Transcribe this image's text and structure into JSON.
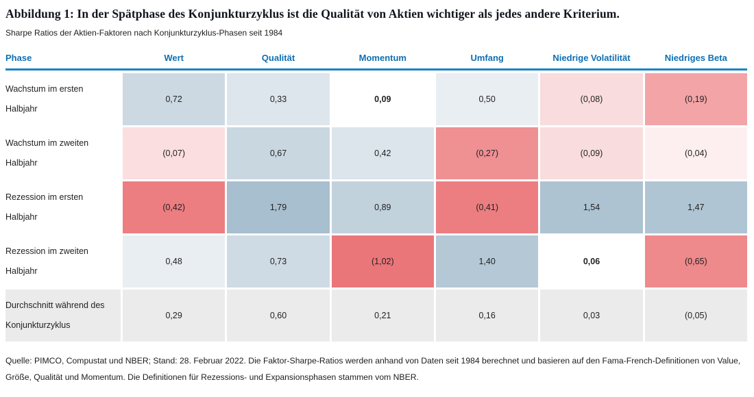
{
  "title": "Abbildung 1: In der Spätphase des Konjunkturzyklus ist die Qualität von Aktien wichtiger als jedes andere Kriterium.",
  "subtitle": "Sharpe Ratios der Aktien-Faktoren nach Konjunkturzyklus-Phasen seit 1984",
  "colors": {
    "accent_blue": "#1583c5",
    "header_text": "#0e6fb2",
    "average_row_gray": "#ebebeb"
  },
  "chart_data": {
    "type": "heatmap",
    "title": "Sharpe Ratios der Aktien-Faktoren nach Konjunkturzyklus-Phasen seit 1984",
    "columns": [
      "Phase",
      "Wert",
      "Qualität",
      "Momentum",
      "Umfang",
      "Niedrige Volatilität",
      "Niedriges Beta"
    ],
    "bold_cells": [
      "0-2",
      "3-4"
    ],
    "rows": [
      {
        "phase": "Wachstum im ersten Halbjahr",
        "values": [
          "0,72",
          "0,33",
          "0,09",
          "0,50",
          "(0,08)",
          "(0,19)"
        ],
        "numbers": [
          0.72,
          0.33,
          0.09,
          0.5,
          -0.08,
          -0.19
        ],
        "label_bg": "#ffffff",
        "cell_colors": [
          "#ccd9e3",
          "#dde6ec",
          "#ffffff",
          "#e9eef3",
          "#f9dcdd",
          "#f3a4a7"
        ]
      },
      {
        "phase": "Wachstum im zweiten Halbjahr",
        "values": [
          "(0,07)",
          "0,67",
          "0,42",
          "(0,27)",
          "(0,09)",
          "(0,04)"
        ],
        "numbers": [
          -0.07,
          0.67,
          0.42,
          -0.27,
          -0.09,
          -0.04
        ],
        "label_bg": "#ffffff",
        "cell_colors": [
          "#fadee0",
          "#c9d7e1",
          "#dbe5eb",
          "#ef9093",
          "#f9dcdd",
          "#fdeff0"
        ]
      },
      {
        "phase": "Rezession im ersten Halbjahr",
        "values": [
          "(0,42)",
          "1,79",
          "0,89",
          "(0,41)",
          "1,54",
          "1,47"
        ],
        "numbers": [
          -0.42,
          1.79,
          0.89,
          -0.41,
          1.54,
          1.47
        ],
        "label_bg": "#ffffff",
        "cell_colors": [
          "#ec7e82",
          "#a7bfcf",
          "#c2d2dd",
          "#ec7e82",
          "#adc3d2",
          "#b0c5d3"
        ]
      },
      {
        "phase": "Rezession im zweiten Halbjahr",
        "values": [
          "0,48",
          "0,73",
          "(1,02)",
          "1,40",
          "0,06",
          "(0,65)"
        ],
        "numbers": [
          0.48,
          0.73,
          -1.02,
          1.4,
          0.06,
          -0.65
        ],
        "label_bg": "#ffffff",
        "cell_colors": [
          "#e9eef3",
          "#cedbe4",
          "#eb767a",
          "#b4c8d6",
          "#ffffff",
          "#ee898c"
        ]
      },
      {
        "phase": "Durchschnitt während des Konjunkturzyklus",
        "values": [
          "0,29",
          "0,60",
          "0,21",
          "0,16",
          "0,03",
          "(0,05)"
        ],
        "numbers": [
          0.29,
          0.6,
          0.21,
          0.16,
          0.03,
          -0.05
        ],
        "label_bg": "#ebebeb",
        "cell_colors": [
          "#ebebeb",
          "#ebebeb",
          "#ebebeb",
          "#ebebeb",
          "#ebebeb",
          "#ebebeb"
        ]
      }
    ]
  },
  "footnote": "Quelle: PIMCO, Compustat und NBER; Stand: 28. Februar 2022. Die Faktor-Sharpe-Ratios werden anhand von Daten seit 1984 berechnet und basieren auf den Fama-French-Definitionen von Value, Größe, Qualität und Momentum. Die Definitionen für Rezessions- und Expansionsphasen stammen vom NBER."
}
